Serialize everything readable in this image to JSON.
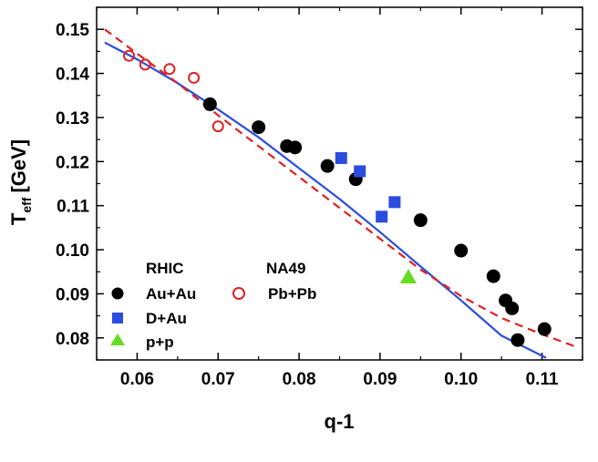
{
  "chart_data": {
    "type": "scatter",
    "xlabel": "q-1",
    "ylabel_main": "T",
    "ylabel_sub": "eff",
    "ylabel_unit": "[GeV]",
    "xlim": [
      0.055,
      0.115
    ],
    "ylim": [
      0.075,
      0.155
    ],
    "x_ticks": [
      0.06,
      0.07,
      0.08,
      0.09,
      0.1,
      0.11
    ],
    "x_tick_labels": [
      "0.06",
      "0.07",
      "0.08",
      "0.09",
      "0.10",
      "0.11"
    ],
    "y_ticks": [
      0.08,
      0.09,
      0.1,
      0.11,
      0.12,
      0.13,
      0.14,
      0.15
    ],
    "y_tick_labels": [
      "0.08",
      "0.09",
      "0.10",
      "0.11",
      "0.12",
      "0.13",
      "0.14",
      "0.15"
    ],
    "legend_groups": [
      "RHIC",
      "NA49"
    ],
    "series": [
      {
        "name": "Au+Au",
        "group": "RHIC",
        "marker": "circle-filled",
        "color": "#000000",
        "points": [
          [
            0.069,
            0.133
          ],
          [
            0.075,
            0.1278
          ],
          [
            0.0785,
            0.1235
          ],
          [
            0.0795,
            0.1232
          ],
          [
            0.0835,
            0.119
          ],
          [
            0.087,
            0.116
          ],
          [
            0.095,
            0.1067
          ],
          [
            0.1,
            0.0998
          ],
          [
            0.104,
            0.094
          ],
          [
            0.1055,
            0.0885
          ],
          [
            0.1063,
            0.0867
          ],
          [
            0.107,
            0.0795
          ],
          [
            0.1103,
            0.082
          ]
        ]
      },
      {
        "name": "D+Au",
        "group": "RHIC",
        "marker": "square-filled",
        "color": "#2a4de0",
        "points": [
          [
            0.0852,
            0.1208
          ],
          [
            0.0875,
            0.1178
          ],
          [
            0.0902,
            0.1075
          ],
          [
            0.0918,
            0.1108
          ]
        ]
      },
      {
        "name": "p+p",
        "group": "RHIC",
        "marker": "triangle-filled",
        "color": "#66dd22",
        "points": [
          [
            0.0935,
            0.0938
          ]
        ]
      },
      {
        "name": "Pb+Pb",
        "group": "NA49",
        "marker": "circle-open",
        "color": "#e02020",
        "points": [
          [
            0.059,
            0.144
          ],
          [
            0.061,
            0.142
          ],
          [
            0.064,
            0.141
          ],
          [
            0.067,
            0.139
          ],
          [
            0.07,
            0.128
          ]
        ]
      }
    ],
    "fits": [
      {
        "name": "solid fit",
        "style": "solid",
        "color": "#2a4de0",
        "points": [
          [
            0.056,
            0.147
          ],
          [
            0.06,
            0.1432
          ],
          [
            0.065,
            0.1378
          ],
          [
            0.07,
            0.1318
          ],
          [
            0.075,
            0.1255
          ],
          [
            0.08,
            0.1185
          ],
          [
            0.085,
            0.1115
          ],
          [
            0.09,
            0.104
          ],
          [
            0.095,
            0.0962
          ],
          [
            0.1,
            0.0885
          ],
          [
            0.105,
            0.0805
          ],
          [
            0.1105,
            0.0755
          ]
        ]
      },
      {
        "name": "dashed fit",
        "style": "dashed",
        "color": "#e02020",
        "points": [
          [
            0.056,
            0.15
          ],
          [
            0.06,
            0.1445
          ],
          [
            0.065,
            0.1378
          ],
          [
            0.07,
            0.1305
          ],
          [
            0.075,
            0.1235
          ],
          [
            0.08,
            0.1165
          ],
          [
            0.085,
            0.1095
          ],
          [
            0.09,
            0.1025
          ],
          [
            0.095,
            0.0955
          ],
          [
            0.1,
            0.0895
          ],
          [
            0.105,
            0.0845
          ],
          [
            0.11,
            0.0808
          ],
          [
            0.1145,
            0.0778
          ]
        ]
      }
    ]
  }
}
